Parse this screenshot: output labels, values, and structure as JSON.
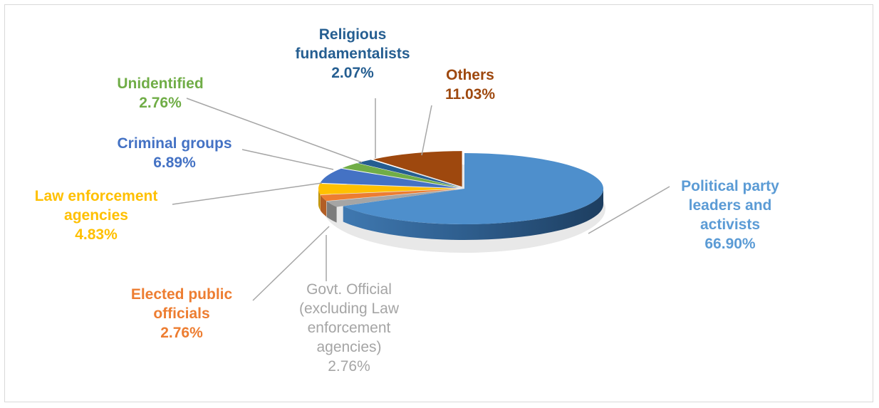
{
  "chart_data": {
    "type": "pie",
    "title": "",
    "style": "3d-exploded",
    "legend": "none",
    "slices": [
      {
        "label": "Political party leaders and activists",
        "value": 66.9,
        "display": "66.90%",
        "color": "#4e8fcc"
      },
      {
        "label": "Govt. Official (excluding Law enforcement agencies)",
        "value": 2.76,
        "display": "2.76%",
        "color": "#a5a5a5"
      },
      {
        "label": "Elected public officials",
        "value": 2.76,
        "display": "2.76%",
        "color": "#ed7d31"
      },
      {
        "label": "Law enforcement agencies",
        "value": 4.83,
        "display": "4.83%",
        "color": "#ffc000"
      },
      {
        "label": "Criminal groups",
        "value": 6.89,
        "display": "6.89%",
        "color": "#4472c4"
      },
      {
        "label": "Unidentified",
        "value": 2.76,
        "display": "2.76%",
        "color": "#70ad47"
      },
      {
        "label": "Religious fundamentalists",
        "value": 2.07,
        "display": "2.07%",
        "color": "#255e91"
      },
      {
        "label": "Others",
        "value": 11.03,
        "display": "11.03%",
        "color": "#9e480e"
      }
    ]
  },
  "labels": {
    "political": {
      "lines": [
        "Political party",
        "leaders and",
        "activists"
      ],
      "pct": "66.90%",
      "color": "#5b9bd5"
    },
    "govt": {
      "lines": [
        "Govt. Official",
        "(excluding Law",
        "enforcement",
        "agencies)"
      ],
      "pct": "2.76%",
      "color": "#a5a5a5"
    },
    "elected": {
      "lines": [
        "Elected public",
        "officials"
      ],
      "pct": "2.76%",
      "color": "#ed7d31"
    },
    "law": {
      "lines": [
        "Law enforcement",
        "agencies"
      ],
      "pct": "4.83%",
      "color": "#ffc000"
    },
    "criminal": {
      "lines": [
        "Criminal groups"
      ],
      "pct": "6.89%",
      "color": "#4472c4"
    },
    "unidentified": {
      "lines": [
        "Unidentified"
      ],
      "pct": "2.76%",
      "color": "#70ad47"
    },
    "religious": {
      "lines": [
        "Religious",
        "fundamentalists"
      ],
      "pct": "2.07%",
      "color": "#255e91"
    },
    "others": {
      "lines": [
        "Others"
      ],
      "pct": "11.03%",
      "color": "#9e480e"
    }
  }
}
